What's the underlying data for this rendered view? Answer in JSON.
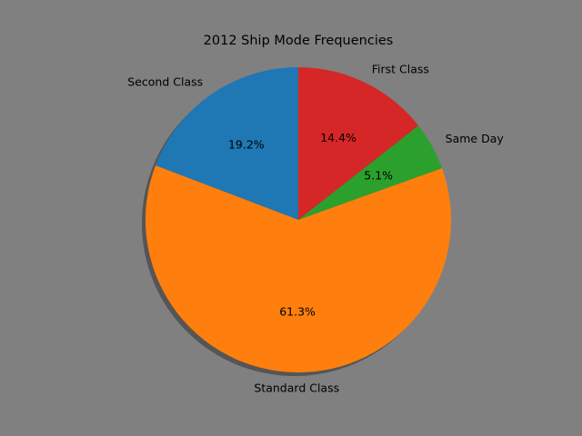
{
  "chart_data": {
    "type": "pie",
    "title": "2012 Ship Mode Frequencies",
    "slices": [
      {
        "label": "Second Class",
        "value": 19.2,
        "pct_label": "19.2%",
        "color": "#1f77b4"
      },
      {
        "label": "Standard Class",
        "value": 61.3,
        "pct_label": "61.3%",
        "color": "#ff7f0e"
      },
      {
        "label": "Same Day",
        "value": 5.1,
        "pct_label": "5.1%",
        "color": "#2ca02c"
      },
      {
        "label": "First Class",
        "value": 14.4,
        "pct_label": "14.4%",
        "color": "#d62728"
      }
    ],
    "start_angle_deg": 90,
    "direction": "counterclockwise",
    "shadow": true,
    "legend": "none"
  }
}
